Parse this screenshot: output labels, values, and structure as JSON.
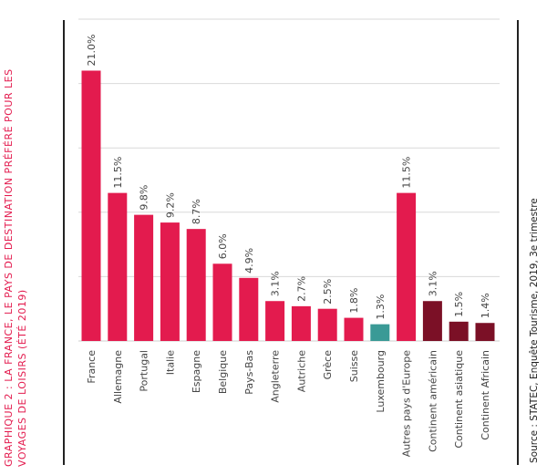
{
  "title_lines": [
    "GRAPHIQUE 2 : LA FRANCE, LE PAYS DE DESTINATION PRÉFÉRÉ POUR LES",
    "VOYAGES DE LOISIRS (ÉTÉ 2019)"
  ],
  "source": "Source : STATEC, Enquête Tourisme, 2019, 3e trimestre",
  "colors": {
    "red": "#e31b4e",
    "teal": "#3a9a96",
    "maroon": "#7b1026",
    "grid": "#d9d9d9",
    "label": "#444444",
    "frame": "#222222"
  },
  "chart_data": {
    "type": "bar",
    "unit": "%",
    "ylim": [
      0,
      25
    ],
    "grid": true,
    "categories": [
      "France",
      "Allemagne",
      "Portugal",
      "Italie",
      "Espagne",
      "Belgique",
      "Pays-Bas",
      "Angleterre",
      "Autriche",
      "Grèce",
      "Suisse",
      "Luxembourg",
      "Autres pays d'Europe",
      "Continent américain",
      "Continent asiatique",
      "Continent Africain"
    ],
    "values": [
      21.0,
      11.5,
      9.8,
      9.2,
      8.7,
      6.0,
      4.9,
      3.1,
      2.7,
      2.5,
      1.8,
      1.3,
      11.5,
      3.1,
      1.5,
      1.4
    ],
    "labels": [
      "21.0%",
      "11.5%",
      "9.8%",
      "9.2%",
      "8.7%",
      "6.0%",
      "4.9%",
      "3.1%",
      "2.7%",
      "2.5%",
      "1.8%",
      "1.3%",
      "11.5%",
      "3.1%",
      "1.5%",
      "1.4%"
    ],
    "bar_colors": [
      "red",
      "red",
      "red",
      "red",
      "red",
      "red",
      "red",
      "red",
      "red",
      "red",
      "red",
      "teal",
      "red",
      "maroon",
      "maroon",
      "maroon"
    ]
  }
}
